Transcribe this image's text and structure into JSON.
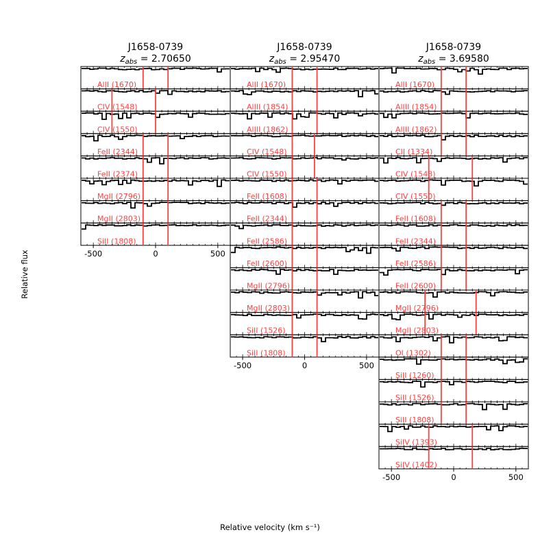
{
  "figure": {
    "ylabel": "Relative flux",
    "xlabel": "Relative velocity (km s⁻¹)"
  },
  "chart_data": [
    {
      "type": "line",
      "title": "J1658-0739",
      "subtitle_prefix": "z",
      "subtitle_sub": "abs",
      "subtitle_value": "= 2.70650",
      "xlim": [
        -600,
        600
      ],
      "xticks": [
        -500,
        0,
        500
      ],
      "xticklabels": [
        "-500",
        "0",
        "500"
      ],
      "markers": [
        -100,
        100
      ],
      "panels": [
        {
          "ion": "AlII (1670)"
        },
        {
          "ion": "CIV (1548)",
          "markers": [
            -350,
            0
          ]
        },
        {
          "ion": "CIV (1550)",
          "markers": [
            -350,
            0
          ]
        },
        {
          "ion": "FeII (2344)"
        },
        {
          "ion": "FeII (2374)"
        },
        {
          "ion": "MgII (2796)"
        },
        {
          "ion": "MgII (2803)"
        },
        {
          "ion": "SiII (1808)"
        }
      ]
    },
    {
      "type": "line",
      "title": "J1658-0739",
      "subtitle_prefix": "z",
      "subtitle_sub": "abs",
      "subtitle_value": "= 2.95470",
      "xlim": [
        -600,
        600
      ],
      "xticks": [
        -500,
        0,
        500
      ],
      "xticklabels": [
        "-500",
        "0",
        "500"
      ],
      "markers": [
        -100,
        100
      ],
      "panels": [
        {
          "ion": "AlII (1670)"
        },
        {
          "ion": "AlIII (1854)"
        },
        {
          "ion": "AlIII (1862)"
        },
        {
          "ion": "CIV (1548)",
          "markers": [
            -100,
            80
          ]
        },
        {
          "ion": "CIV (1550)",
          "markers": [
            -100,
            80
          ]
        },
        {
          "ion": "FeII (1608)"
        },
        {
          "ion": "FeII (2344)"
        },
        {
          "ion": "FeII (2586)"
        },
        {
          "ion": "FeII (2600)"
        },
        {
          "ion": "MgII (2796)"
        },
        {
          "ion": "MgII (2803)"
        },
        {
          "ion": "SiII (1526)"
        },
        {
          "ion": "SiII (1808)"
        }
      ]
    },
    {
      "type": "line",
      "title": "J1658-0739",
      "subtitle_prefix": "z",
      "subtitle_sub": "abs",
      "subtitle_value": "= 3.69580",
      "xlim": [
        -600,
        600
      ],
      "xticks": [
        -500,
        0,
        500
      ],
      "xticklabels": [
        "-500",
        "0",
        "500"
      ],
      "markers": [
        -100,
        100
      ],
      "panels": [
        {
          "ion": "AlII (1670)"
        },
        {
          "ion": "AlIII (1854)"
        },
        {
          "ion": "AlIII (1862)"
        },
        {
          "ion": "CII (1334)"
        },
        {
          "ion": "CIV (1548)",
          "markers": [
            -200,
            150
          ]
        },
        {
          "ion": "CIV (1550)",
          "markers": [
            -200,
            150
          ]
        },
        {
          "ion": "FeII (1608)"
        },
        {
          "ion": "FeII (2344)"
        },
        {
          "ion": "FeII (2586)"
        },
        {
          "ion": "FeII (2600)"
        },
        {
          "ion": "MgII (2796)",
          "markers": [
            -230,
            180
          ]
        },
        {
          "ion": "MgII (2803)",
          "markers": [
            -230,
            180
          ]
        },
        {
          "ion": "OI (1302)"
        },
        {
          "ion": "SiII (1260)"
        },
        {
          "ion": "SiII (1526)"
        },
        {
          "ion": "SiII (1808)"
        },
        {
          "ion": "SiIV (1393)",
          "markers": [
            -200,
            150
          ]
        },
        {
          "ion": "SiIV (1402)",
          "markers": [
            -200,
            150
          ]
        }
      ]
    }
  ]
}
